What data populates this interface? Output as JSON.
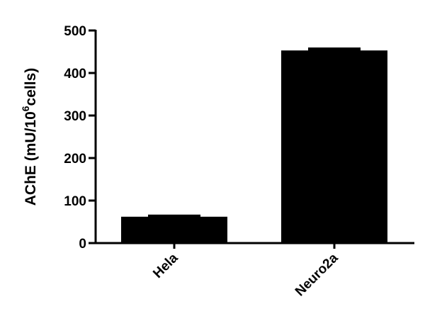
{
  "chart_data": {
    "type": "bar",
    "title": "",
    "xlabel": "",
    "ylabel_main": "AChE (mU/10",
    "ylabel_sup": "6",
    "ylabel_end": "cells)",
    "categories": [
      "Hela",
      "Neuro2a"
    ],
    "values": [
      62,
      453
    ],
    "error_upper": [
      67,
      460
    ],
    "ylim": [
      0,
      500
    ],
    "yticks": [
      0,
      100,
      200,
      300,
      400,
      500
    ],
    "grid": false,
    "bar_color": "#000000"
  }
}
